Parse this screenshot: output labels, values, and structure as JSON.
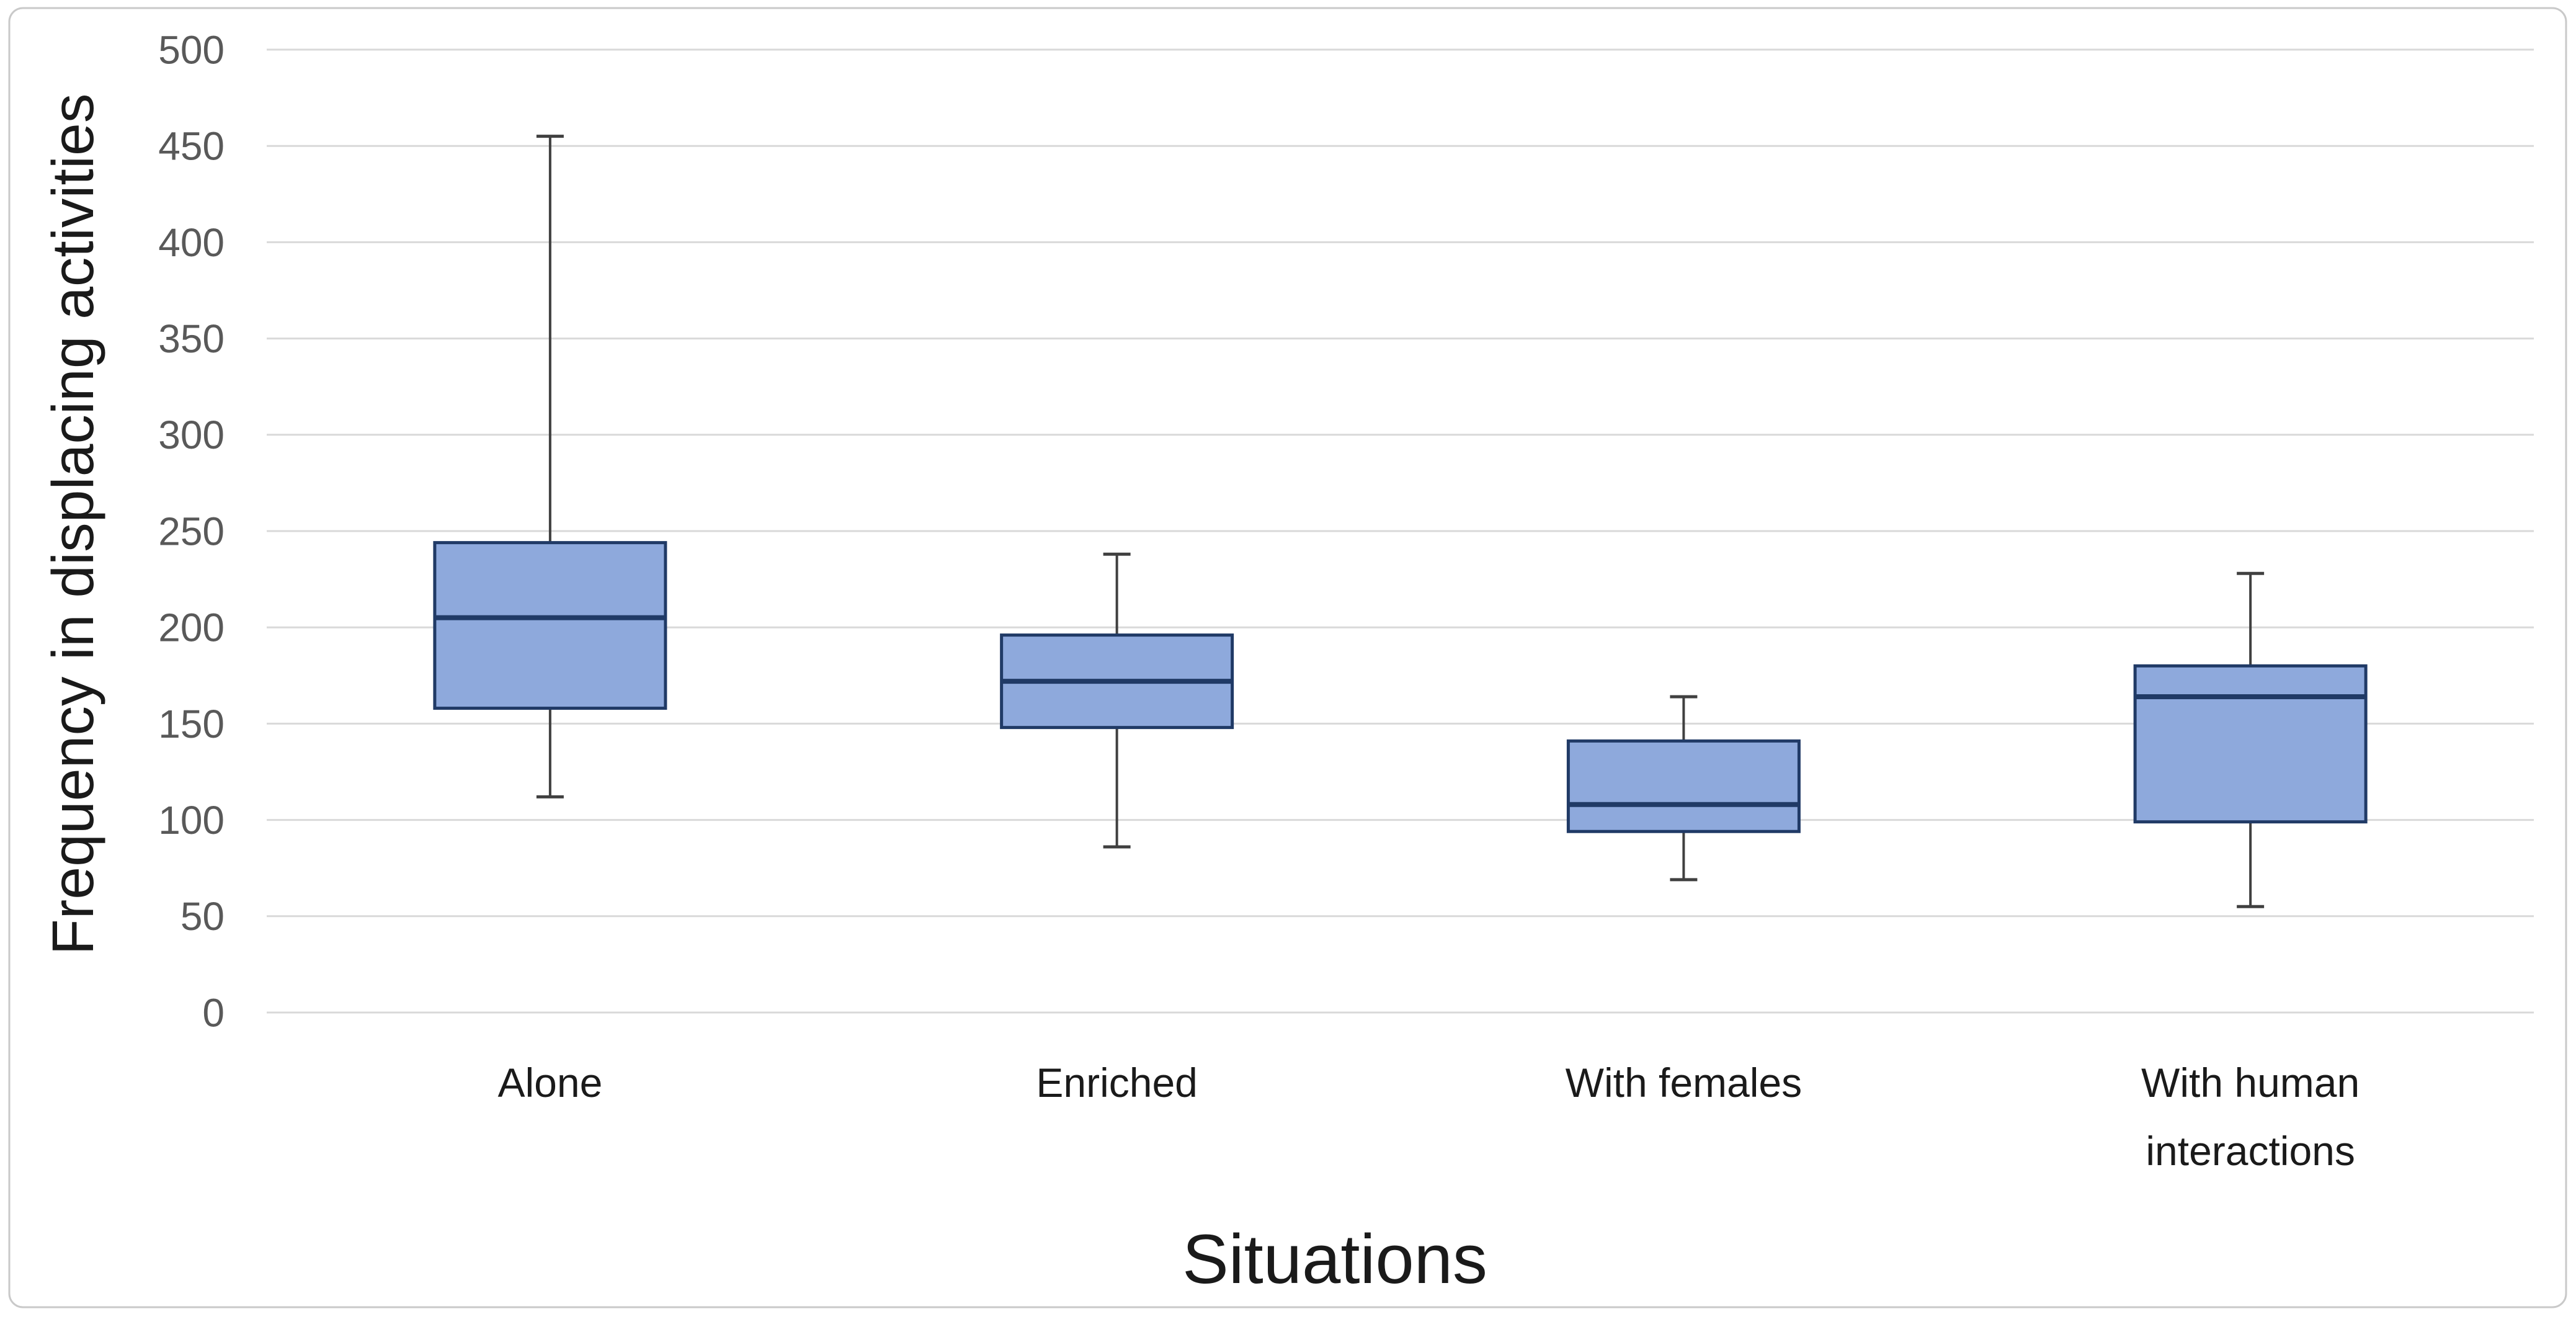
{
  "chart_data": {
    "type": "boxplot",
    "title": "",
    "xlabel": "Situations",
    "ylabel": "Frequency in displacing activities",
    "ylim": [
      0,
      500
    ],
    "ytick_step": 50,
    "yticks": [
      0,
      50,
      100,
      150,
      200,
      250,
      300,
      350,
      400,
      450,
      500
    ],
    "grid": "horizontal",
    "legend_position": "none",
    "categories": [
      "Alone",
      "Enriched",
      "With females",
      "With human interactions"
    ],
    "series": [
      {
        "name": "Alone",
        "label_lines": [
          "Alone"
        ],
        "min": 112,
        "q1": 158,
        "median": 205,
        "q3": 244,
        "max": 455
      },
      {
        "name": "Enriched",
        "label_lines": [
          "Enriched"
        ],
        "min": 86,
        "q1": 148,
        "median": 172,
        "q3": 196,
        "max": 238
      },
      {
        "name": "With females",
        "label_lines": [
          "With females"
        ],
        "min": 69,
        "q1": 94,
        "median": 108,
        "q3": 141,
        "max": 164
      },
      {
        "name": "With human interactions",
        "label_lines": [
          "With human",
          "interactions"
        ],
        "min": 55,
        "q1": 99,
        "median": 164,
        "q3": 180,
        "max": 228
      }
    ],
    "colors": {
      "box_fill": "#8EA9DC",
      "box_border": "#203A66",
      "median_line": "#203A66",
      "whisker": "#404040",
      "gridline": "#D9D9D9",
      "tick_label": "#595959",
      "axis_title": "#1A1A1A",
      "frame_border": "#C9C9C9",
      "background": "#FFFFFF"
    }
  }
}
